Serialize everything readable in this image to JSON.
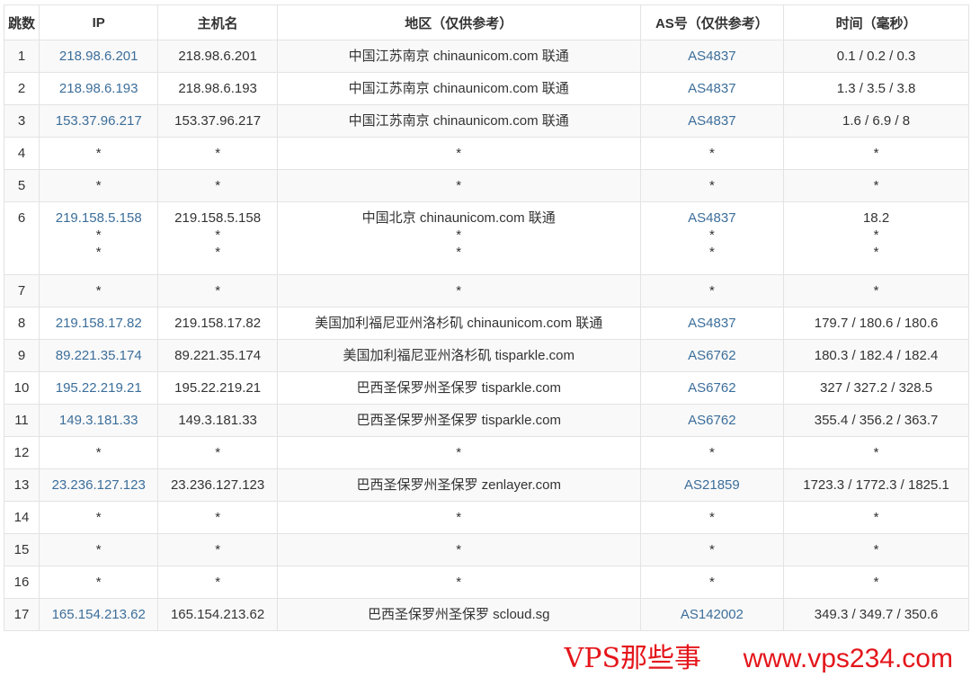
{
  "headers": [
    "跳数",
    "IP",
    "主机名",
    "地区（仅供参考）",
    "AS号（仅供参考）",
    "时间（毫秒）"
  ],
  "rows": [
    {
      "hop": "1",
      "ip": [
        "218.98.6.201"
      ],
      "host": [
        "218.98.6.201"
      ],
      "region": [
        "中国江苏南京 chinaunicom.com 联通"
      ],
      "as": [
        "AS4837"
      ],
      "time": [
        "0.1 / 0.2 / 0.3"
      ]
    },
    {
      "hop": "2",
      "ip": [
        "218.98.6.193"
      ],
      "host": [
        "218.98.6.193"
      ],
      "region": [
        "中国江苏南京 chinaunicom.com 联通"
      ],
      "as": [
        "AS4837"
      ],
      "time": [
        "1.3 / 3.5 / 3.8"
      ]
    },
    {
      "hop": "3",
      "ip": [
        "153.37.96.217"
      ],
      "host": [
        "153.37.96.217"
      ],
      "region": [
        "中国江苏南京 chinaunicom.com 联通"
      ],
      "as": [
        "AS4837"
      ],
      "time": [
        "1.6 / 6.9 / 8"
      ]
    },
    {
      "hop": "4",
      "ip": [
        "*"
      ],
      "host": [
        "*"
      ],
      "region": [
        "*"
      ],
      "as": [
        "*"
      ],
      "time": [
        "*"
      ]
    },
    {
      "hop": "5",
      "ip": [
        "*"
      ],
      "host": [
        "*"
      ],
      "region": [
        "*"
      ],
      "as": [
        "*"
      ],
      "time": [
        "*"
      ]
    },
    {
      "hop": "6",
      "ip": [
        "219.158.5.158",
        "*",
        "*"
      ],
      "host": [
        "219.158.5.158",
        "*",
        "*"
      ],
      "region": [
        "中国北京 chinaunicom.com 联通",
        "*",
        "*"
      ],
      "as": [
        "AS4837",
        "*",
        "*"
      ],
      "time": [
        "18.2",
        "*",
        "*"
      ]
    },
    {
      "hop": "7",
      "ip": [
        "*"
      ],
      "host": [
        "*"
      ],
      "region": [
        "*"
      ],
      "as": [
        "*"
      ],
      "time": [
        "*"
      ]
    },
    {
      "hop": "8",
      "ip": [
        "219.158.17.82"
      ],
      "host": [
        "219.158.17.82"
      ],
      "region": [
        "美国加利福尼亚州洛杉矶 chinaunicom.com 联通"
      ],
      "as": [
        "AS4837"
      ],
      "time": [
        "179.7 / 180.6 / 180.6"
      ]
    },
    {
      "hop": "9",
      "ip": [
        "89.221.35.174"
      ],
      "host": [
        "89.221.35.174"
      ],
      "region": [
        "美国加利福尼亚州洛杉矶 tisparkle.com"
      ],
      "as": [
        "AS6762"
      ],
      "time": [
        "180.3 / 182.4 / 182.4"
      ]
    },
    {
      "hop": "10",
      "ip": [
        "195.22.219.21"
      ],
      "host": [
        "195.22.219.21"
      ],
      "region": [
        "巴西圣保罗州圣保罗 tisparkle.com"
      ],
      "as": [
        "AS6762"
      ],
      "time": [
        "327 / 327.2 / 328.5"
      ]
    },
    {
      "hop": "11",
      "ip": [
        "149.3.181.33"
      ],
      "host": [
        "149.3.181.33"
      ],
      "region": [
        "巴西圣保罗州圣保罗 tisparkle.com"
      ],
      "as": [
        "AS6762"
      ],
      "time": [
        "355.4 / 356.2 / 363.7"
      ]
    },
    {
      "hop": "12",
      "ip": [
        "*"
      ],
      "host": [
        "*"
      ],
      "region": [
        "*"
      ],
      "as": [
        "*"
      ],
      "time": [
        "*"
      ]
    },
    {
      "hop": "13",
      "ip": [
        "23.236.127.123"
      ],
      "host": [
        "23.236.127.123"
      ],
      "region": [
        "巴西圣保罗州圣保罗 zenlayer.com"
      ],
      "as": [
        "AS21859"
      ],
      "time": [
        "1723.3 / 1772.3 / 1825.1"
      ]
    },
    {
      "hop": "14",
      "ip": [
        "*"
      ],
      "host": [
        "*"
      ],
      "region": [
        "*"
      ],
      "as": [
        "*"
      ],
      "time": [
        "*"
      ]
    },
    {
      "hop": "15",
      "ip": [
        "*"
      ],
      "host": [
        "*"
      ],
      "region": [
        "*"
      ],
      "as": [
        "*"
      ],
      "time": [
        "*"
      ]
    },
    {
      "hop": "16",
      "ip": [
        "*"
      ],
      "host": [
        "*"
      ],
      "region": [
        "*"
      ],
      "as": [
        "*"
      ],
      "time": [
        "*"
      ]
    },
    {
      "hop": "17",
      "ip": [
        "165.154.213.62"
      ],
      "host": [
        "165.154.213.62"
      ],
      "region": [
        "巴西圣保罗州圣保罗 scloud.sg"
      ],
      "as": [
        "AS142002"
      ],
      "time": [
        "349.3 / 349.7 / 350.6"
      ]
    }
  ],
  "watermark": {
    "line1": "VPS那些事",
    "line2": "www.vps234.com",
    "color": "#e4161b"
  },
  "colors": {
    "link": "#3c6e9a",
    "stripe": "#f9f9f9",
    "border": "#e3e3e3"
  }
}
